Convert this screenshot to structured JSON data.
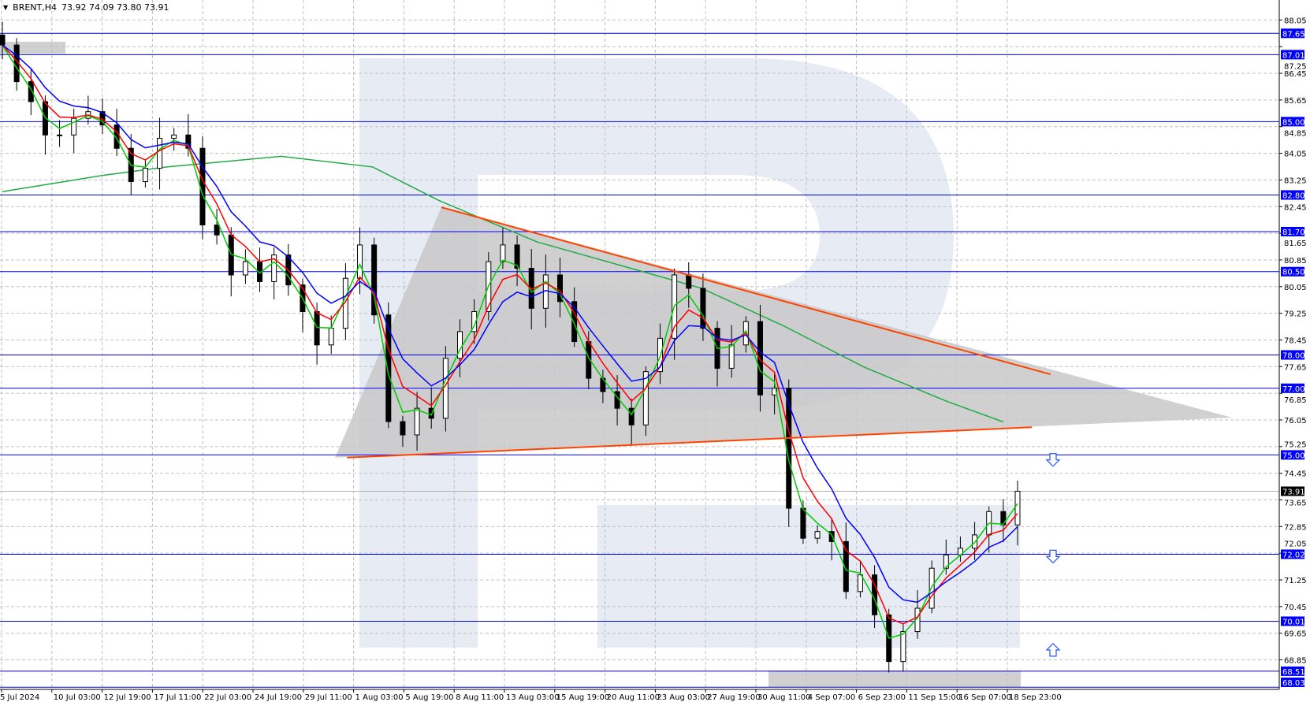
{
  "header": {
    "symbol": "BRENT,H4",
    "ohlc": "73.92 74.09 73.80 73.91",
    "menu_icon": "triangle-down-icon"
  },
  "colors": {
    "level_line": "#0000ff",
    "level_label_bg": "#0000ff",
    "price_label_bg": "#000000",
    "ma_fast": "#00cc00",
    "ma_mid": "#ff0000",
    "ma_slow": "#0000ff",
    "ma_long": "#22aa44",
    "trendline": "#ff4400",
    "pattern_fill": "#c8c8c8",
    "grid": "#c0c0c0",
    "watermark": "#e6ebf4"
  },
  "chart_data": {
    "type": "candlestick",
    "title": "BRENT,H4",
    "ylim": [
      68.03,
      88.5
    ],
    "y_ticks": [
      "88.05",
      "87.25",
      "86.45",
      "85.65",
      "84.85",
      "84.05",
      "83.25",
      "82.45",
      "81.65",
      "80.85",
      "80.05",
      "79.25",
      "78.45",
      "77.65",
      "76.85",
      "76.05",
      "75.25",
      "74.45",
      "73.65",
      "72.85",
      "72.05",
      "71.25",
      "70.45",
      "69.65",
      "68.85"
    ],
    "x_ticks": [
      "5 Jul 2024",
      "10 Jul 03:00",
      "12 Jul 19:00",
      "17 Jul 11:00",
      "22 Jul 03:00",
      "24 Jul 19:00",
      "29 Jul 11:00",
      "1 Aug 03:00",
      "5 Aug 19:00",
      "8 Aug 11:00",
      "13 Aug 03:00",
      "15 Aug 19:00",
      "20 Aug 11:00",
      "23 Aug 03:00",
      "27 Aug 19:00",
      "30 Aug 11:00",
      "4 Sep 07:00",
      "6 Sep 23:00",
      "11 Sep 15:00",
      "16 Sep 07:00",
      "18 Sep 23:00"
    ],
    "closes": [
      87.3,
      86.2,
      85.6,
      84.6,
      84.6,
      85.1,
      85.3,
      84.9,
      84.2,
      83.2,
      83.6,
      84.5,
      84.6,
      84.2,
      81.9,
      81.6,
      80.4,
      80.8,
      80.2,
      81.0,
      80.1,
      79.3,
      78.3,
      78.8,
      80.3,
      81.3,
      79.2,
      76.0,
      75.6,
      76.4,
      76.1,
      77.9,
      78.7,
      79.3,
      80.8,
      81.3,
      80.6,
      79.4,
      80.4,
      79.6,
      78.4,
      77.3,
      76.9,
      76.4,
      75.9,
      77.5,
      78.5,
      80.4,
      80.0,
      78.8,
      77.6,
      78.3,
      79.0,
      76.8,
      77.0,
      73.4,
      72.5,
      72.7,
      72.4,
      70.9,
      71.4,
      70.2,
      68.8,
      69.7,
      70.4,
      71.6,
      72.0,
      72.2,
      72.6,
      73.3,
      72.9,
      73.91
    ],
    "current_price": "73.91",
    "levels": [
      "87.65",
      "87.01",
      "85.00",
      "82.80",
      "81.70",
      "80.50",
      "78.00",
      "77.00",
      "75.00",
      "72.02",
      "70.01",
      "68.51",
      "68.03"
    ],
    "ma_long": [
      [
        0,
        82.9
      ],
      [
        6.9,
        83.38
      ],
      [
        11.5,
        83.64
      ],
      [
        19.5,
        83.96
      ],
      [
        25.9,
        83.64
      ],
      [
        30.5,
        82.64
      ],
      [
        37.4,
        81.39
      ],
      [
        43.7,
        80.63
      ],
      [
        48.9,
        80.0
      ],
      [
        54.6,
        78.88
      ],
      [
        60.3,
        77.63
      ],
      [
        66.1,
        76.6
      ],
      [
        70,
        75.99
      ]
    ],
    "trendline_upper": [
      [
        30.7,
        82.43
      ],
      [
        73.3,
        77.42
      ]
    ],
    "trendline_lower": [
      [
        24.1,
        74.92
      ],
      [
        72.0,
        75.83
      ]
    ],
    "pattern_apex": [
      86.0,
      76.12
    ],
    "arrows": [
      {
        "dir": "down",
        "price": 74.85
      },
      {
        "dir": "down",
        "price": 71.95
      },
      {
        "dir": "up",
        "price": 69.15
      }
    ]
  }
}
